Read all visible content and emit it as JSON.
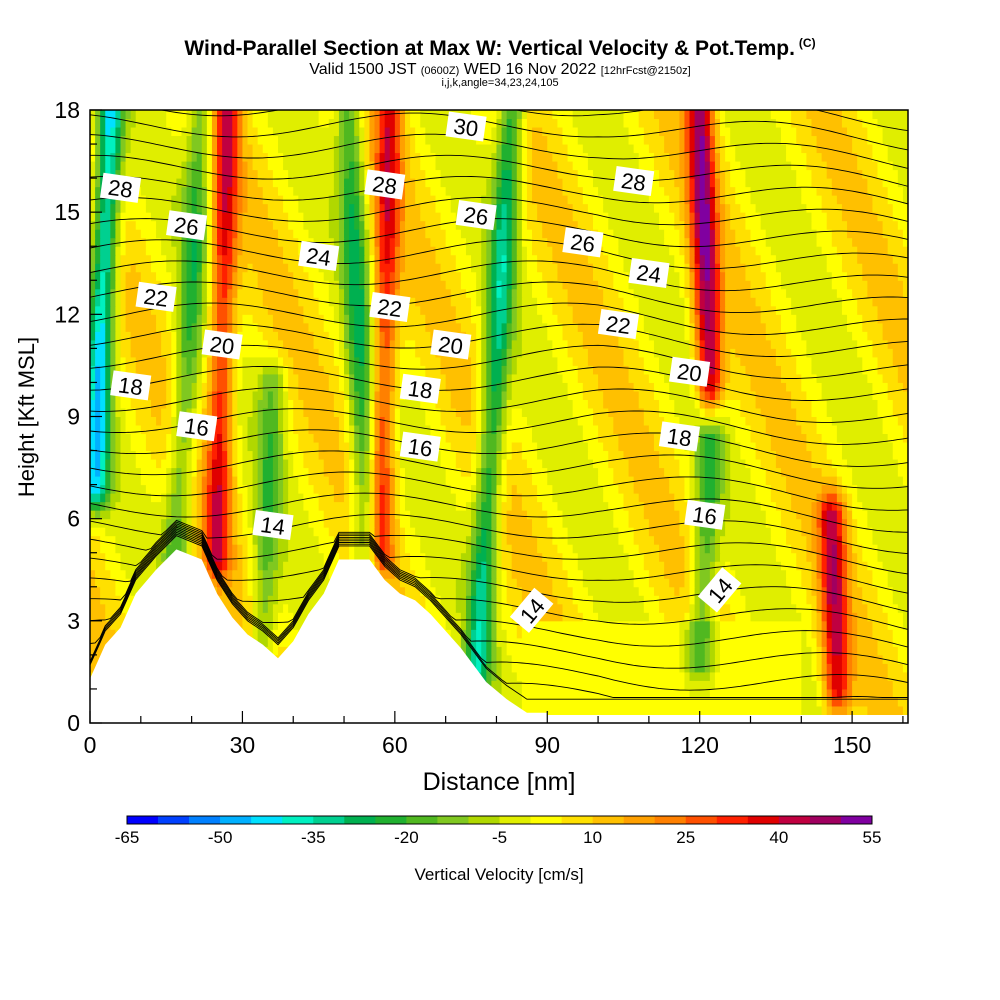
{
  "title": {
    "main": "Wind-Parallel Section at Max W: Vertical Velocity & Pot.Temp.",
    "main_suffix": "(C)",
    "sub_prefix": "Valid 1500 JST",
    "sub_zulu": "(0600Z)",
    "sub_date": "WED 16 Nov 2022",
    "sub_fcst": "[12hrFcst@2150z]",
    "sub2": "i,j,k,angle=34,23,24,105"
  },
  "chart_data": {
    "type": "heatmap",
    "xlabel": "Distance [nm]",
    "ylabel": "Height [Kft MSL]",
    "xlim": [
      0,
      161
    ],
    "ylim": [
      0,
      18
    ],
    "x_ticks": [
      0,
      30,
      60,
      90,
      120,
      150
    ],
    "y_ticks": [
      0,
      3,
      6,
      9,
      12,
      15,
      18
    ],
    "colorbar": {
      "label": "Vertical Velocity [cm/s]",
      "tick_labels": [
        -65,
        -50,
        -35,
        -20,
        -5,
        10,
        25,
        40,
        55
      ],
      "bins": [
        -65,
        -60,
        -55,
        -50,
        -45,
        -40,
        -35,
        -30,
        -25,
        -20,
        -15,
        -10,
        -5,
        0,
        5,
        10,
        15,
        20,
        25,
        30,
        35,
        40,
        45,
        50,
        55
      ],
      "colors": [
        "#0000ff",
        "#0040ff",
        "#0080ff",
        "#00b0ff",
        "#00e0ff",
        "#00f0c0",
        "#00d090",
        "#00b050",
        "#20b030",
        "#50b820",
        "#80c820",
        "#b0d800",
        "#e0ee00",
        "#ffff00",
        "#ffe000",
        "#ffc000",
        "#ffa000",
        "#ff8000",
        "#ff5000",
        "#ff2000",
        "#e00000",
        "#c00040",
        "#a00060",
        "#8000a0"
      ]
    },
    "theta_contour_labels": [
      {
        "value": 28,
        "x": 6,
        "y": 15.7
      },
      {
        "value": 26,
        "x": 19,
        "y": 14.6
      },
      {
        "value": 22,
        "x": 13,
        "y": 12.5
      },
      {
        "value": 20,
        "x": 26,
        "y": 11.1
      },
      {
        "value": 18,
        "x": 8,
        "y": 9.9
      },
      {
        "value": 16,
        "x": 21,
        "y": 8.7
      },
      {
        "value": 14,
        "x": 36,
        "y": 5.8
      },
      {
        "value": 24,
        "x": 45,
        "y": 13.7
      },
      {
        "value": 28,
        "x": 58,
        "y": 15.8
      },
      {
        "value": 22,
        "x": 59,
        "y": 12.2
      },
      {
        "value": 18,
        "x": 65,
        "y": 9.8
      },
      {
        "value": 16,
        "x": 65,
        "y": 8.1
      },
      {
        "value": 30,
        "x": 74,
        "y": 17.5
      },
      {
        "value": 26,
        "x": 76,
        "y": 14.9
      },
      {
        "value": 20,
        "x": 71,
        "y": 11.1
      },
      {
        "value": 14,
        "x": 87,
        "y": 3.3
      },
      {
        "value": 28,
        "x": 107,
        "y": 15.9
      },
      {
        "value": 26,
        "x": 97,
        "y": 14.1
      },
      {
        "value": 24,
        "x": 110,
        "y": 13.2
      },
      {
        "value": 22,
        "x": 104,
        "y": 11.7
      },
      {
        "value": 20,
        "x": 118,
        "y": 10.3
      },
      {
        "value": 18,
        "x": 116,
        "y": 8.4
      },
      {
        "value": 16,
        "x": 121,
        "y": 6.1
      },
      {
        "value": 14,
        "x": 124,
        "y": 3.9
      }
    ],
    "terrain_profile": [
      [
        0,
        1.3
      ],
      [
        3,
        2.3
      ],
      [
        6,
        2.8
      ],
      [
        9,
        3.8
      ],
      [
        13,
        4.5
      ],
      [
        17,
        5.1
      ],
      [
        22,
        4.8
      ],
      [
        25,
        3.8
      ],
      [
        28,
        3.1
      ],
      [
        31,
        2.6
      ],
      [
        34,
        2.3
      ],
      [
        37,
        1.9
      ],
      [
        40,
        2.4
      ],
      [
        43,
        3.2
      ],
      [
        46,
        3.8
      ],
      [
        49,
        4.8
      ],
      [
        55,
        4.8
      ],
      [
        58,
        4.2
      ],
      [
        61,
        3.8
      ],
      [
        64,
        3.6
      ],
      [
        67,
        3.2
      ],
      [
        70,
        2.7
      ],
      [
        73,
        2.2
      ],
      [
        76,
        1.6
      ],
      [
        78,
        1.2
      ],
      [
        82,
        0.7
      ],
      [
        86,
        0.3
      ],
      [
        90,
        0.3
      ]
    ],
    "updraft_downdraft_bands": [
      {
        "x_bottom": 1,
        "x_top": 4,
        "peak_cm_s": -45,
        "y_min": 7,
        "y_max": 18
      },
      {
        "x_bottom": 17,
        "x_top": 22,
        "peak_cm_s": -22,
        "y_min": 5,
        "y_max": 18
      },
      {
        "x_bottom": 25,
        "x_top": 27,
        "peak_cm_s": 32,
        "y_min": 5,
        "y_max": 18
      },
      {
        "x_bottom": 34,
        "x_top": 36,
        "peak_cm_s": -18,
        "y_min": 2.5,
        "y_max": 10
      },
      {
        "x_bottom": 55,
        "x_top": 51,
        "peak_cm_s": -26,
        "y_min": 4,
        "y_max": 18
      },
      {
        "x_bottom": 57,
        "x_top": 59,
        "peak_cm_s": 30,
        "y_min": 5,
        "y_max": 18
      },
      {
        "x_bottom": 76,
        "x_top": 83,
        "peak_cm_s": -32,
        "y_min": 1,
        "y_max": 18
      },
      {
        "x_bottom": 122,
        "x_top": 120,
        "peak_cm_s": 42,
        "y_min": 10,
        "y_max": 18
      },
      {
        "x_bottom": 120,
        "x_top": 122,
        "peak_cm_s": -22,
        "y_min": 2,
        "y_max": 8
      },
      {
        "x_bottom": 147,
        "x_top": 146,
        "peak_cm_s": 34,
        "y_min": 1,
        "y_max": 6
      }
    ]
  }
}
